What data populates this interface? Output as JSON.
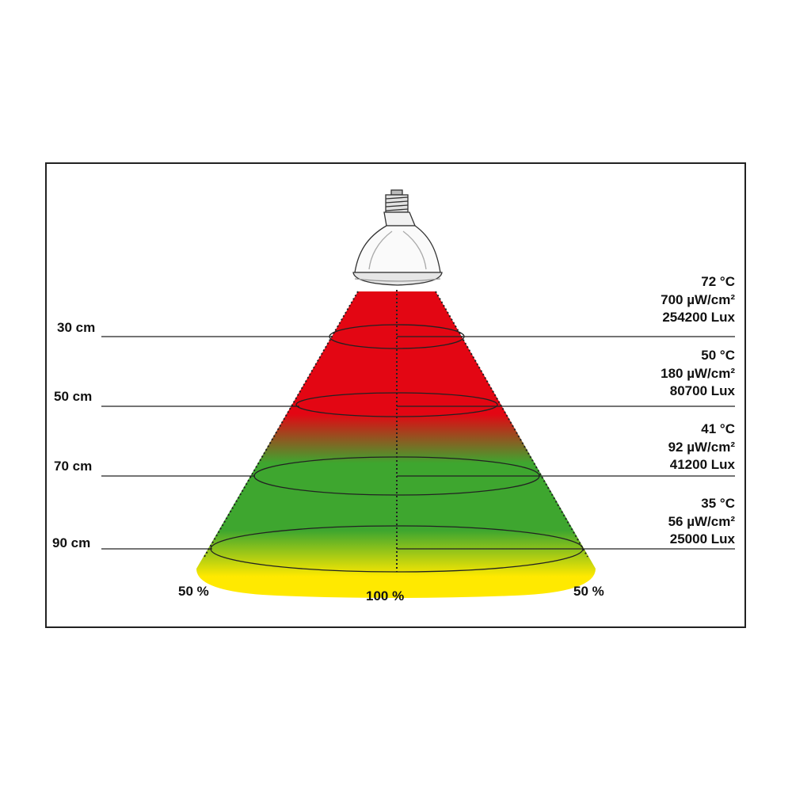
{
  "colors": {
    "hot": "#e30613",
    "warm": "#3ea62f",
    "mild": "#ffe900",
    "line": "#222222"
  },
  "icon": "heat-lamp-bulb-icon",
  "distances": [
    {
      "label": "30 cm"
    },
    {
      "label": "50 cm"
    },
    {
      "label": "70 cm"
    },
    {
      "label": "90 cm"
    }
  ],
  "readings": [
    {
      "temp": "72 °C",
      "uv": "700 µW/cm²",
      "lux": "254200 Lux"
    },
    {
      "temp": "50 °C",
      "uv": "180 µW/cm²",
      "lux": "80700 Lux"
    },
    {
      "temp": "41 °C",
      "uv": "92 µW/cm²",
      "lux": "41200 Lux"
    },
    {
      "temp": "35 °C",
      "uv": "56 µW/cm²",
      "lux": "25000 Lux"
    }
  ],
  "percent": {
    "left": "50 %",
    "center": "100 %",
    "right": "50 %"
  }
}
